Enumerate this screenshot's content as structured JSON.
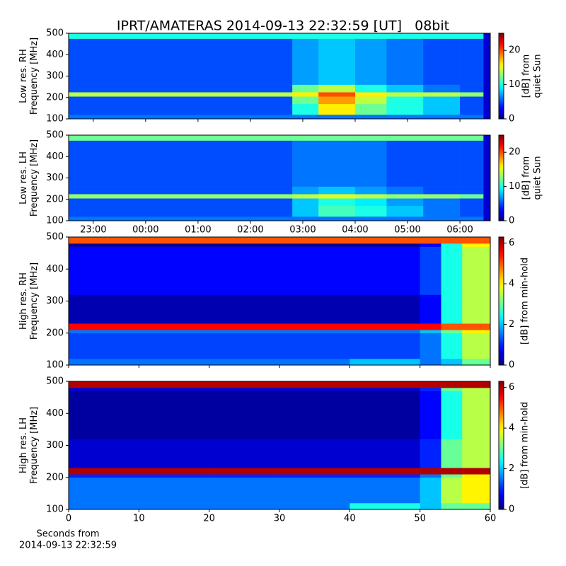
{
  "title": "IPRT/AMATERAS 2014-09-13 22:32:59 [UT]   08bit",
  "chart_data": [
    {
      "type": "heatmap",
      "ylabel": [
        "Low res. RH",
        "Frequency [MHz]"
      ],
      "x_edges": [
        22.53,
        26.8,
        27.3,
        28.0,
        28.6,
        29.3,
        30.0,
        30.45,
        30.58
      ],
      "y_edges": [
        100,
        120,
        170,
        205,
        225,
        260,
        475,
        500
      ],
      "z": [
        [
          6,
          6,
          6,
          6,
          6,
          6,
          6,
          2
        ],
        [
          5,
          10,
          16,
          12,
          10,
          8,
          5,
          2
        ],
        [
          5,
          12,
          18,
          14,
          10,
          8,
          5,
          2
        ],
        [
          14,
          16,
          20,
          16,
          14,
          14,
          13,
          2
        ],
        [
          5,
          12,
          14,
          10,
          8,
          6,
          5,
          2
        ],
        [
          5,
          7,
          8,
          7,
          6,
          5,
          5,
          2
        ],
        [
          10,
          10,
          10,
          10,
          10,
          10,
          10,
          2
        ]
      ],
      "xlim": [
        22.53,
        30.58
      ],
      "ylim": [
        100,
        500
      ],
      "xticks": [
        {
          "value": 23,
          "label": "23:00"
        },
        {
          "value": 24,
          "label": "00:00"
        },
        {
          "value": 25,
          "label": "01:00"
        },
        {
          "value": 26,
          "label": "02:00"
        },
        {
          "value": 27,
          "label": "03:00"
        },
        {
          "value": 28,
          "label": "04:00"
        },
        {
          "value": 29,
          "label": "05:00"
        },
        {
          "value": 30,
          "label": "06:00"
        }
      ],
      "yticks": [
        100,
        200,
        300,
        400,
        500
      ],
      "xtick_labels": false,
      "colormap": "jet",
      "clim": [
        0,
        25
      ],
      "cticks": [
        0,
        10,
        20
      ],
      "colorbar_label": [
        "[dB] from",
        "quiet Sun"
      ]
    },
    {
      "type": "heatmap",
      "ylabel": [
        "Low res. LH",
        "Frequency [MHz]"
      ],
      "x_edges": [
        22.53,
        26.8,
        27.3,
        28.0,
        28.6,
        29.3,
        30.0,
        30.45,
        30.58
      ],
      "y_edges": [
        100,
        120,
        170,
        205,
        225,
        260,
        475,
        500
      ],
      "z": [
        [
          6,
          6,
          6,
          6,
          6,
          6,
          6,
          2
        ],
        [
          5,
          8,
          11,
          10,
          8,
          6,
          5,
          2
        ],
        [
          5,
          8,
          10,
          9,
          7,
          6,
          5,
          2
        ],
        [
          13,
          14,
          15,
          14,
          13,
          13,
          12,
          2
        ],
        [
          5,
          7,
          8,
          7,
          6,
          5,
          5,
          2
        ],
        [
          5,
          6,
          6,
          6,
          5,
          5,
          5,
          2
        ],
        [
          12,
          12,
          12,
          12,
          12,
          12,
          12,
          2
        ]
      ],
      "xlim": [
        22.53,
        30.58
      ],
      "ylim": [
        100,
        500
      ],
      "xticks": [
        {
          "value": 23,
          "label": "23:00"
        },
        {
          "value": 24,
          "label": "00:00"
        },
        {
          "value": 25,
          "label": "01:00"
        },
        {
          "value": 26,
          "label": "02:00"
        },
        {
          "value": 27,
          "label": "03:00"
        },
        {
          "value": 28,
          "label": "04:00"
        },
        {
          "value": 29,
          "label": "05:00"
        },
        {
          "value": 30,
          "label": "06:00"
        }
      ],
      "yticks": [
        100,
        200,
        300,
        400,
        500
      ],
      "xtick_labels": true,
      "colormap": "jet",
      "clim": [
        0,
        25
      ],
      "cticks": [
        0,
        10,
        20
      ],
      "colorbar_label": [
        "[dB] from",
        "quiet Sun"
      ]
    },
    {
      "type": "heatmap",
      "ylabel": [
        "High res. RH",
        "Frequency [MHz]"
      ],
      "x_edges": [
        0,
        10,
        20,
        30,
        40,
        50,
        53,
        56,
        60
      ],
      "y_edges": [
        100,
        120,
        200,
        210,
        230,
        320,
        470,
        480,
        500
      ],
      "z": [
        [
          1.5,
          1.5,
          1.5,
          1.5,
          2,
          1.5,
          2,
          3
        ],
        [
          1.2,
          1.2,
          1.2,
          1.2,
          1.2,
          1.5,
          2.5,
          3.5
        ],
        [
          1.5,
          1.5,
          1.5,
          1.5,
          1.5,
          2,
          3,
          4
        ],
        [
          5.5,
          5.5,
          5.5,
          5.5,
          5.5,
          5.5,
          5,
          5
        ],
        [
          0.3,
          0.3,
          0.3,
          0.3,
          0.3,
          0.8,
          2.5,
          3.5
        ],
        [
          0.8,
          0.8,
          0.8,
          0.8,
          0.8,
          1.2,
          2.5,
          3.5
        ],
        [
          0.2,
          0.2,
          0.2,
          0.2,
          0.2,
          0.8,
          2.5,
          4
        ],
        [
          5,
          5,
          5,
          5,
          5,
          5,
          5,
          5
        ]
      ],
      "xlim": [
        0,
        60
      ],
      "ylim": [
        100,
        500
      ],
      "xticks": [
        0,
        10,
        20,
        30,
        40,
        50,
        60
      ],
      "yticks": [
        100,
        200,
        300,
        400,
        500
      ],
      "xtick_labels": false,
      "colormap": "jet",
      "clim": [
        0,
        6.3
      ],
      "cticks": [
        0,
        2,
        4,
        6
      ],
      "colorbar_label": [
        "[dB] from min-hold"
      ]
    },
    {
      "type": "heatmap",
      "ylabel": [
        "High res. LH",
        "Frequency [MHz]"
      ],
      "x_edges": [
        0,
        10,
        20,
        30,
        40,
        50,
        53,
        56,
        60
      ],
      "y_edges": [
        100,
        120,
        200,
        210,
        230,
        320,
        470,
        480,
        500
      ],
      "z": [
        [
          1.5,
          1.5,
          1.5,
          1.5,
          2.5,
          2,
          3,
          3
        ],
        [
          1.5,
          1.5,
          1.5,
          1.5,
          1.5,
          2,
          3.5,
          4
        ],
        [
          1,
          1,
          1,
          1,
          1,
          1.5,
          3,
          4
        ],
        [
          6,
          6,
          6,
          6,
          6,
          6,
          6,
          6
        ],
        [
          0.5,
          0.5,
          0.5,
          0.5,
          0.5,
          1,
          3,
          3.5
        ],
        [
          0.2,
          0.2,
          0.2,
          0.2,
          0.2,
          0.8,
          2.5,
          3.5
        ],
        [
          0.5,
          0.5,
          0.5,
          0.5,
          0.5,
          1,
          3,
          3.5
        ],
        [
          6,
          6,
          6,
          6,
          6,
          6,
          6,
          6
        ]
      ],
      "xlim": [
        0,
        60
      ],
      "ylim": [
        100,
        500
      ],
      "xticks": [
        0,
        10,
        20,
        30,
        40,
        50,
        60
      ],
      "yticks": [
        100,
        200,
        300,
        400,
        500
      ],
      "xtick_labels": true,
      "xlabel": [
        "Seconds from",
        "2014-09-13 22:32:59"
      ],
      "colormap": "jet",
      "clim": [
        0,
        6.3
      ],
      "cticks": [
        0,
        2,
        4,
        6
      ],
      "colorbar_label": [
        "[dB] from min-hold"
      ]
    }
  ]
}
